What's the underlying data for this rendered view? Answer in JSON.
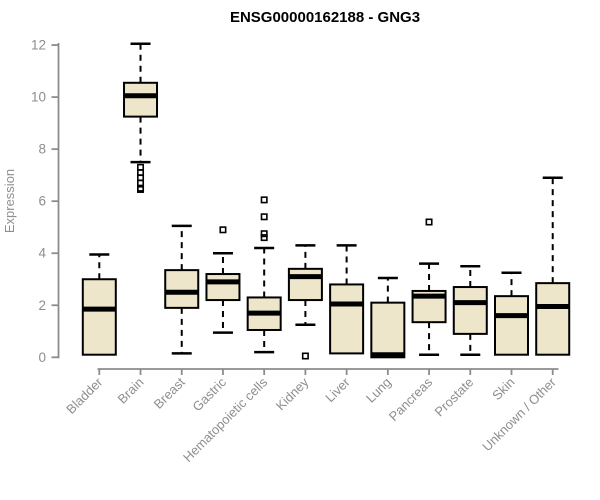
{
  "style": {
    "background": "#FFFFFF",
    "box_fill": "#EDE6CB",
    "line_color": "#000000",
    "axis_color": "#8C8C8C",
    "label_color": "#8E8E8E",
    "title_color": "#000000"
  },
  "chart_data": {
    "type": "boxplot",
    "title": "ENSG00000162188 - GNG3",
    "xlabel": "",
    "ylabel": "Expression",
    "ylim": [
      0,
      12
    ],
    "yticks": [
      0,
      2,
      4,
      6,
      8,
      10,
      12
    ],
    "grid": false,
    "legend": false,
    "categories": [
      "Bladder",
      "Brain",
      "Breast",
      "Gastric",
      "Hematopoietic cells",
      "Kidney",
      "Liver",
      "Lung",
      "Pancreas",
      "Prostate",
      "Skin",
      "Unknown / Other"
    ],
    "series": [
      {
        "name": "Bladder",
        "whisker_low": 0.1,
        "q1": 0.1,
        "median": 1.85,
        "q3": 3.0,
        "whisker_high": 3.95,
        "outliers": []
      },
      {
        "name": "Brain",
        "whisker_low": 7.5,
        "q1": 9.25,
        "median": 10.05,
        "q3": 10.55,
        "whisker_high": 12.05,
        "outliers": [
          7.3,
          7.1,
          6.9,
          6.7,
          6.5,
          6.45
        ]
      },
      {
        "name": "Breast",
        "whisker_low": 0.15,
        "q1": 1.9,
        "median": 2.5,
        "q3": 3.35,
        "whisker_high": 5.05,
        "outliers": []
      },
      {
        "name": "Gastric",
        "whisker_low": 0.95,
        "q1": 2.2,
        "median": 2.9,
        "q3": 3.2,
        "whisker_high": 4.0,
        "outliers": [
          4.9
        ]
      },
      {
        "name": "Hematopoietic cells",
        "whisker_low": 0.2,
        "q1": 1.05,
        "median": 1.7,
        "q3": 2.3,
        "whisker_high": 4.2,
        "outliers": [
          6.05,
          5.4,
          4.75,
          4.6
        ]
      },
      {
        "name": "Kidney",
        "whisker_low": 1.25,
        "q1": 2.2,
        "median": 3.1,
        "q3": 3.4,
        "whisker_high": 4.3,
        "outliers": [
          0.05
        ]
      },
      {
        "name": "Liver",
        "whisker_low": 0.15,
        "q1": 0.15,
        "median": 2.05,
        "q3": 2.8,
        "whisker_high": 4.3,
        "outliers": []
      },
      {
        "name": "Lung",
        "whisker_low": 0.0,
        "q1": 0.0,
        "median": 0.1,
        "q3": 2.1,
        "whisker_high": 3.05,
        "outliers": []
      },
      {
        "name": "Pancreas",
        "whisker_low": 0.1,
        "q1": 1.35,
        "median": 2.35,
        "q3": 2.55,
        "whisker_high": 3.6,
        "outliers": [
          5.2
        ]
      },
      {
        "name": "Prostate",
        "whisker_low": 0.1,
        "q1": 0.9,
        "median": 2.1,
        "q3": 2.7,
        "whisker_high": 3.5,
        "outliers": []
      },
      {
        "name": "Skin",
        "whisker_low": 0.1,
        "q1": 0.1,
        "median": 1.6,
        "q3": 2.35,
        "whisker_high": 3.25,
        "outliers": []
      },
      {
        "name": "Unknown / Other",
        "whisker_low": 0.1,
        "q1": 0.1,
        "median": 1.95,
        "q3": 2.85,
        "whisker_high": 6.9,
        "outliers": []
      }
    ]
  }
}
